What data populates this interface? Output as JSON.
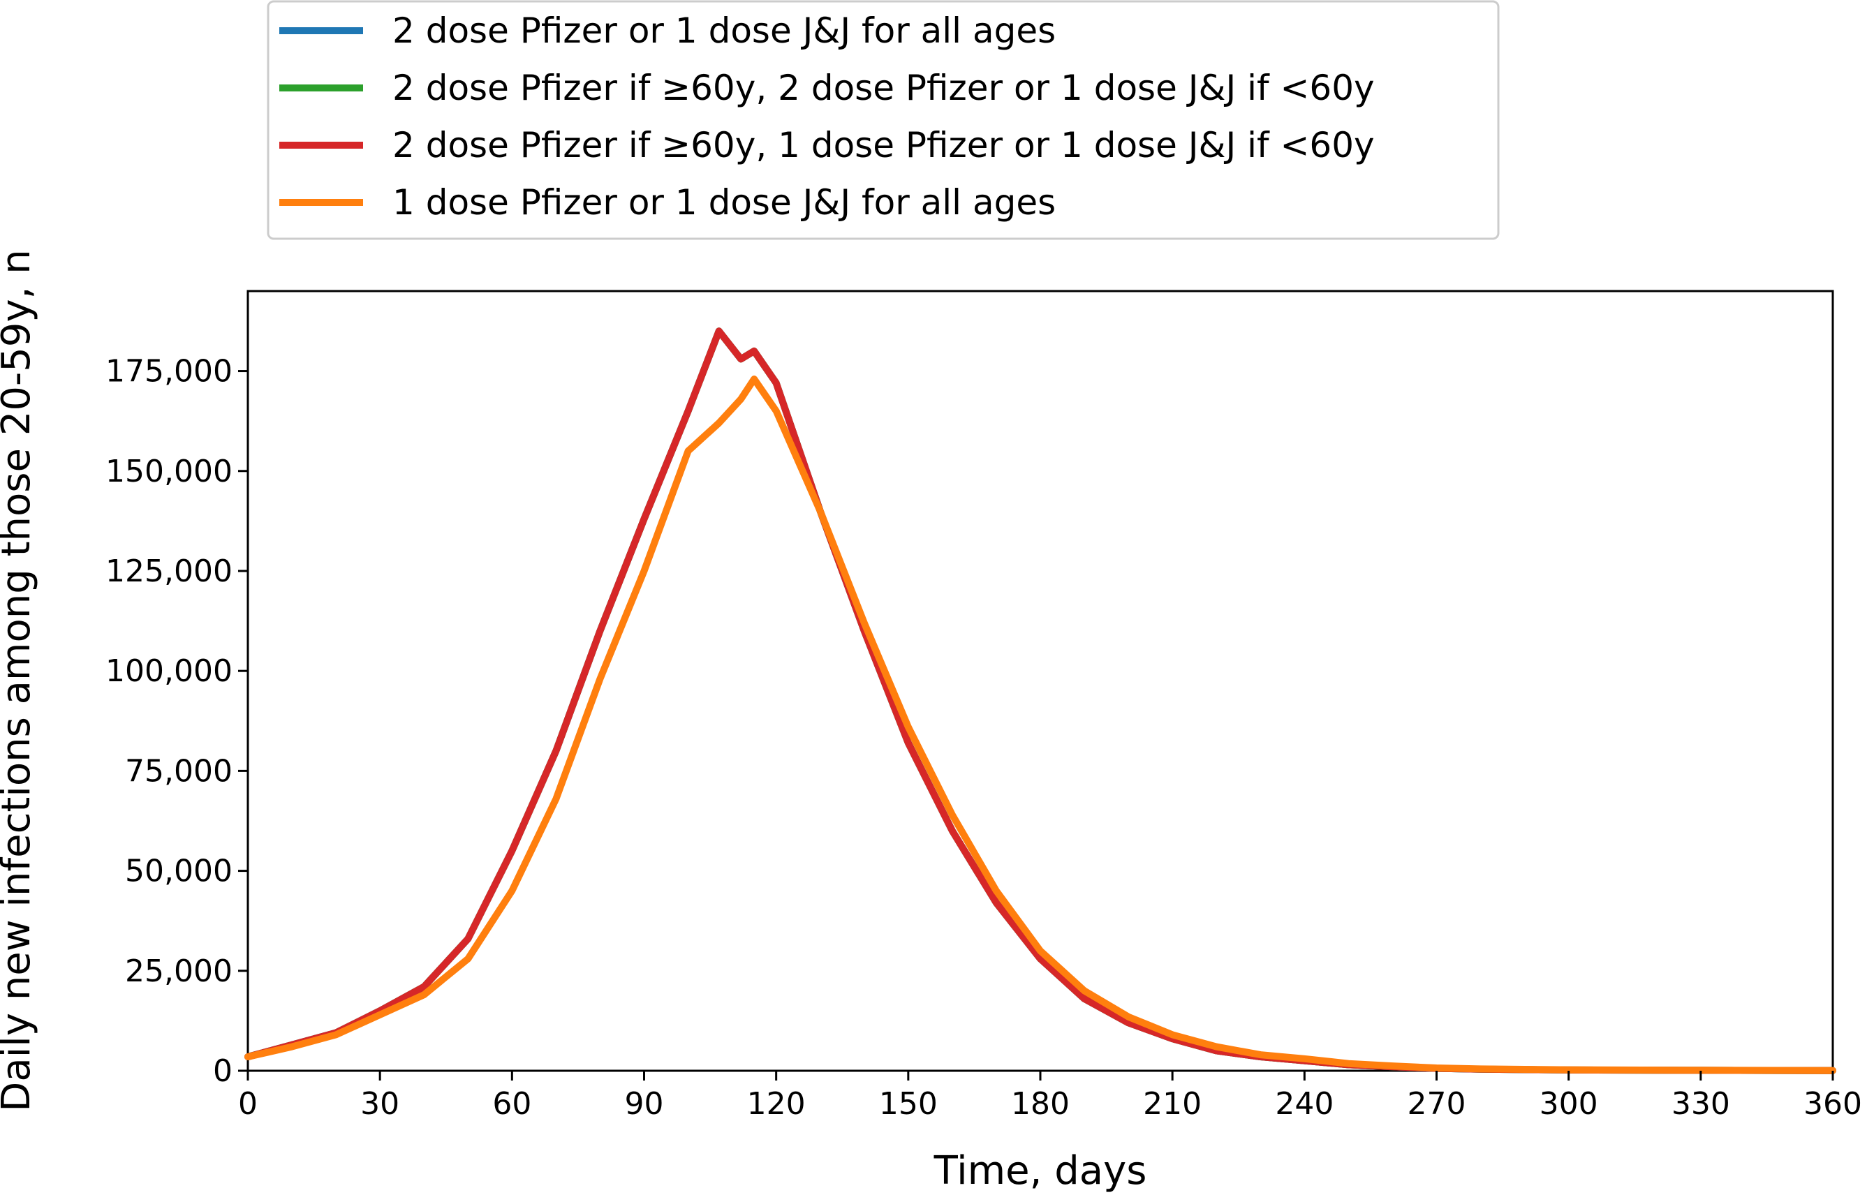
{
  "chart_data": {
    "type": "line",
    "title": "",
    "xlabel": "Time, days",
    "ylabel": "Daily new infections among those 20-59y, n",
    "xlim": [
      0,
      360
    ],
    "ylim": [
      0,
      195000
    ],
    "xticks": [
      0,
      30,
      60,
      90,
      120,
      150,
      180,
      210,
      240,
      270,
      300,
      330,
      360
    ],
    "xtick_labels": [
      "0",
      "30",
      "60",
      "90",
      "120",
      "150",
      "180",
      "210",
      "240",
      "270",
      "300",
      "330",
      "360"
    ],
    "yticks": [
      0,
      25000,
      50000,
      75000,
      100000,
      125000,
      150000,
      175000
    ],
    "ytick_labels": [
      "0",
      "25,000",
      "50,000",
      "75,000",
      "100,000",
      "125,000",
      "150,000",
      "175,000"
    ],
    "grid": false,
    "legend_position": "top, above plot",
    "x": [
      0,
      10,
      20,
      30,
      40,
      50,
      60,
      70,
      80,
      90,
      100,
      107,
      112,
      115,
      120,
      130,
      140,
      150,
      160,
      170,
      180,
      190,
      200,
      210,
      220,
      230,
      240,
      250,
      260,
      270,
      280,
      300,
      330,
      360
    ],
    "series": [
      {
        "name": "2 dose Pfizer or 1 dose J&J for all ages",
        "color": "#1f77b4",
        "values": [
          3500,
          6500,
          9500,
          15000,
          21000,
          33000,
          55000,
          80000,
          110000,
          138000,
          165000,
          185000,
          178000,
          180000,
          172000,
          140000,
          110000,
          82000,
          60000,
          42000,
          28000,
          18000,
          12000,
          8000,
          5000,
          3500,
          2500,
          1500,
          1000,
          600,
          400,
          200,
          100,
          50
        ]
      },
      {
        "name": "2 dose Pfizer if ≥60y, 2 dose Pfizer or 1 dose J&J if <60y",
        "color": "#2ca02c",
        "values": [
          3500,
          6500,
          9500,
          15000,
          21000,
          33000,
          55000,
          80000,
          110000,
          138000,
          165000,
          185000,
          178000,
          180000,
          172000,
          140000,
          110000,
          82000,
          60000,
          42000,
          28000,
          18000,
          12000,
          8000,
          5000,
          3500,
          2500,
          1500,
          1000,
          600,
          400,
          200,
          100,
          50
        ]
      },
      {
        "name": "2 dose Pfizer if ≥60y, 1 dose Pfizer or 1 dose J&J if <60y",
        "color": "#d62728",
        "values": [
          3500,
          6500,
          9500,
          15000,
          21000,
          33000,
          55000,
          80000,
          110000,
          138000,
          165000,
          185000,
          178000,
          180000,
          172000,
          140000,
          110000,
          82000,
          60000,
          42000,
          28000,
          18000,
          12000,
          8000,
          5000,
          3500,
          2500,
          1500,
          1000,
          600,
          400,
          200,
          100,
          50
        ]
      },
      {
        "name": "1 dose Pfizer or 1 dose J&J for all ages",
        "color": "#ff7f0e",
        "values": [
          3500,
          6000,
          9000,
          14000,
          19000,
          28000,
          45000,
          68000,
          98000,
          125000,
          155000,
          162000,
          168000,
          173000,
          165000,
          140000,
          112000,
          86000,
          64000,
          45000,
          30000,
          20000,
          13500,
          9000,
          6000,
          4000,
          3000,
          1800,
          1200,
          700,
          450,
          250,
          120,
          60
        ]
      }
    ]
  }
}
